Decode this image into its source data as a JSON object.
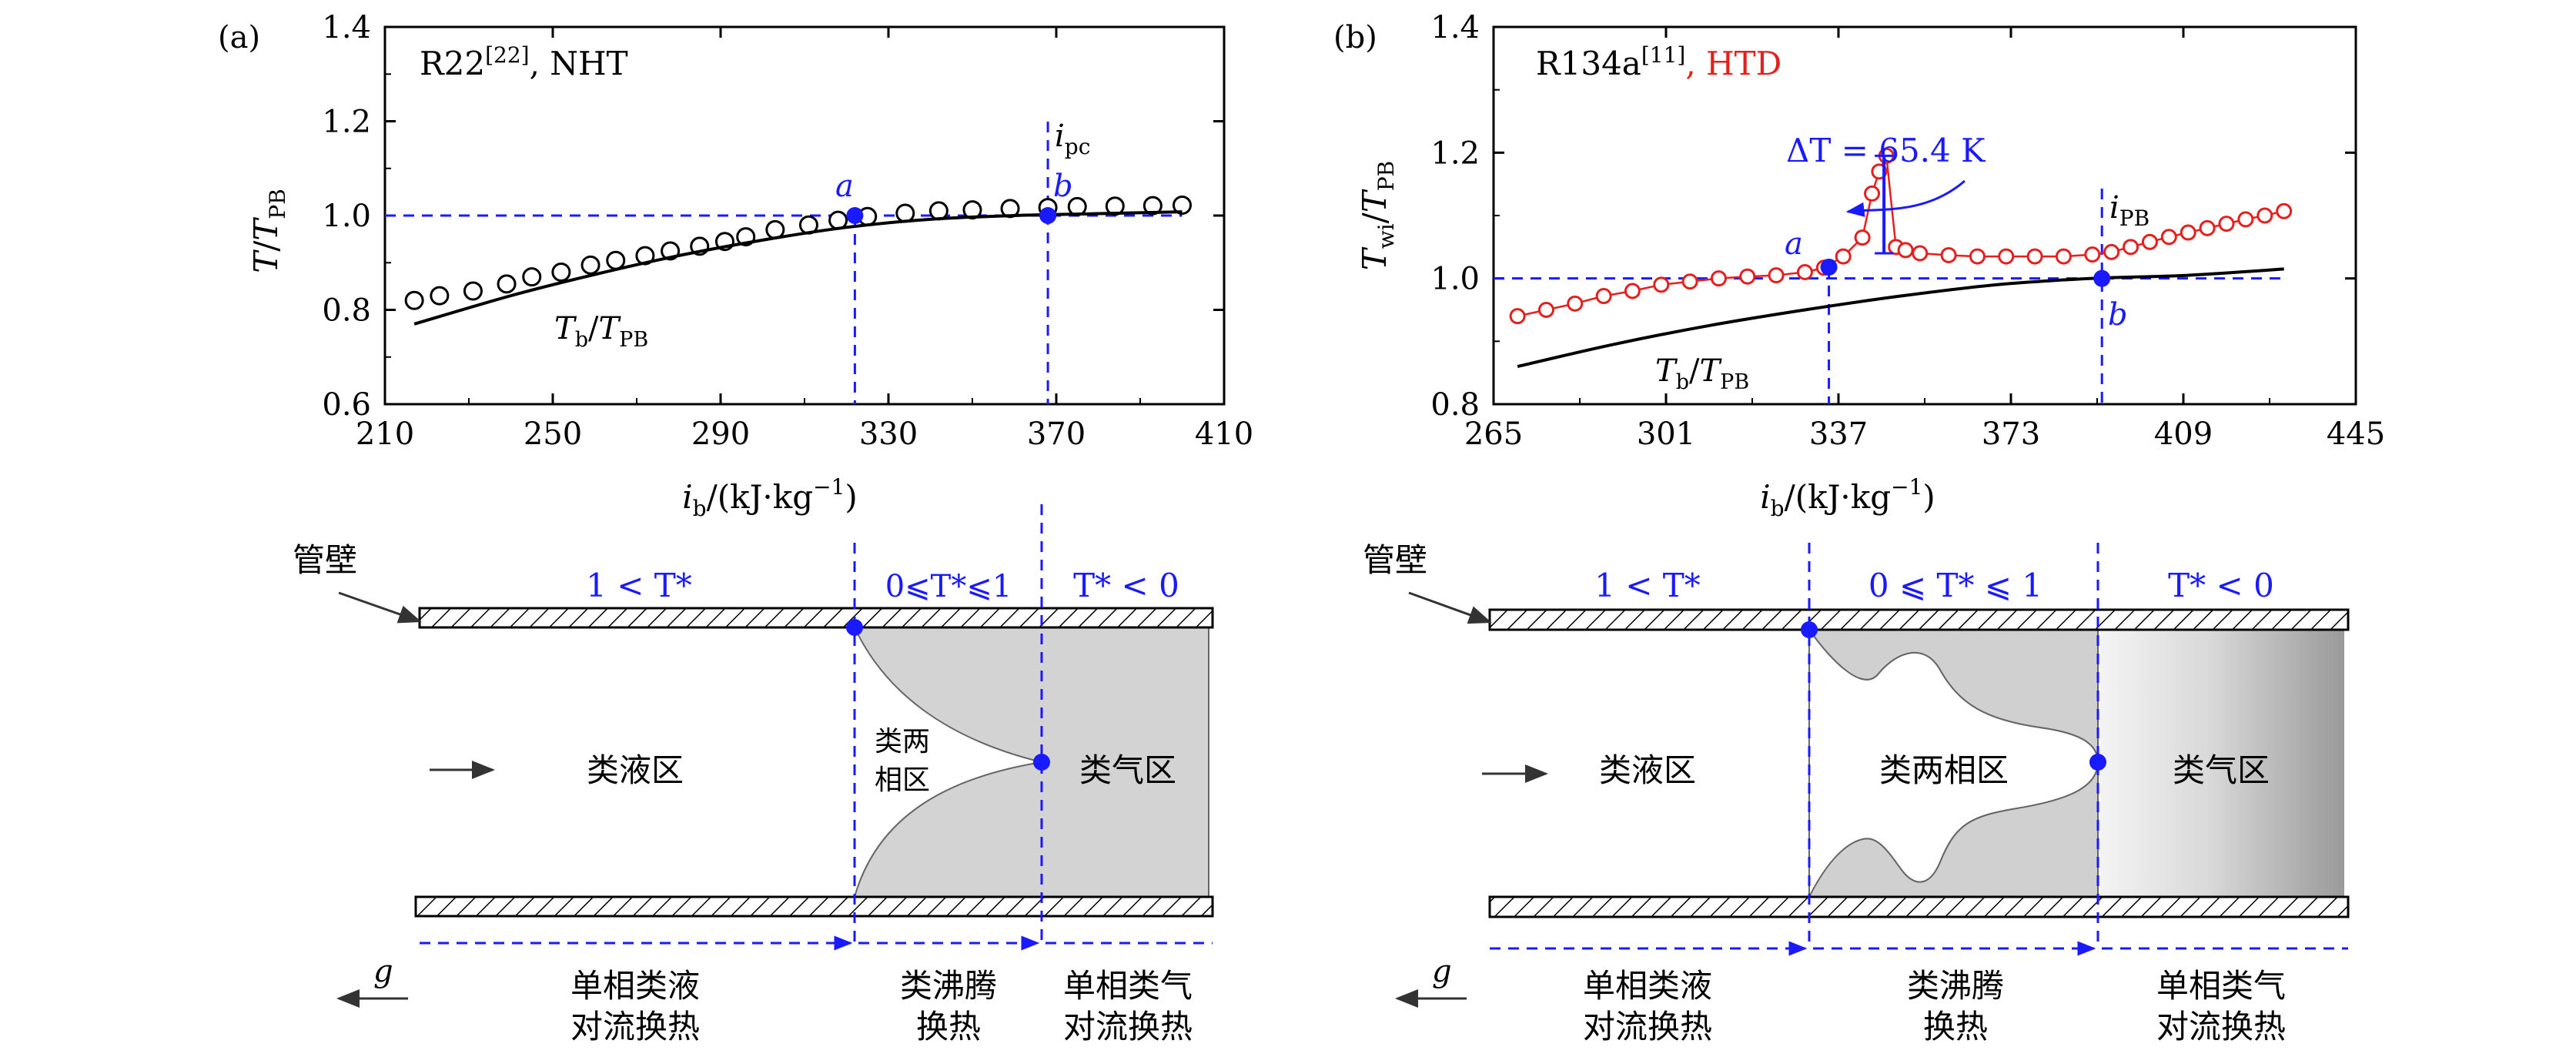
{
  "chart_data": [
    {
      "type": "scatter",
      "panel_label": "(a)",
      "title": "R22",
      "title_ref": "[22]",
      "title_suffix": ", NHT",
      "xlabel": "i_b/(kJ·kg^-1)",
      "ylabel": "T/T_PB",
      "xlim": [
        210,
        410
      ],
      "ylim": [
        0.6,
        1.4
      ],
      "xticks": [
        210,
        250,
        290,
        330,
        370,
        410
      ],
      "yticks": [
        0.6,
        0.8,
        1.0,
        1.2,
        1.4
      ],
      "ref_y": 1.0,
      "ipc_x": 368,
      "series": [
        {
          "name": "wall",
          "marker": "open-circle",
          "x": [
            217,
            223,
            231,
            239,
            245,
            252,
            259,
            265,
            272,
            278,
            285,
            291,
            296,
            303,
            311,
            318,
            325,
            334,
            342,
            350,
            359,
            368,
            375,
            384,
            393,
            400
          ],
          "y": [
            0.82,
            0.83,
            0.84,
            0.855,
            0.87,
            0.88,
            0.895,
            0.905,
            0.915,
            0.925,
            0.935,
            0.945,
            0.955,
            0.97,
            0.98,
            0.99,
            0.998,
            1.005,
            1.01,
            1.012,
            1.015,
            1.017,
            1.019,
            1.02,
            1.021,
            1.022
          ]
        },
        {
          "name": "T_b/T_PB",
          "line": true,
          "x": [
            217,
            240,
            260,
            280,
            300,
            320,
            340,
            360,
            380,
            400
          ],
          "y": [
            0.77,
            0.83,
            0.875,
            0.915,
            0.948,
            0.975,
            0.992,
            1.0,
            1.004,
            1.008
          ]
        }
      ],
      "points": [
        {
          "name": "a",
          "x": 322,
          "y": 1.0
        },
        {
          "name": "b",
          "x": 368,
          "y": 1.0
        }
      ]
    },
    {
      "type": "scatter",
      "panel_label": "(b)",
      "title": "R134a",
      "title_ref": "[11]",
      "title_suffix": ", HTD",
      "xlabel": "i_b/(kJ·kg^-1)",
      "ylabel": "T_wi/T_PB",
      "xlim": [
        265,
        445
      ],
      "ylim": [
        0.8,
        1.4
      ],
      "xticks": [
        265,
        301,
        337,
        373,
        409,
        445
      ],
      "yticks": [
        0.8,
        1.0,
        1.2,
        1.4
      ],
      "ref_y": 1.0,
      "ipb_x": 392,
      "delta_T_label": "ΔT = 65.4 K",
      "series": [
        {
          "name": "wall",
          "marker": "open-circle",
          "line": true,
          "x": [
            270,
            276,
            282,
            288,
            294,
            300,
            306,
            312,
            318,
            324,
            330,
            334,
            338,
            342,
            344,
            345.5,
            347,
            349,
            351,
            354,
            360,
            366,
            372,
            378,
            384,
            390,
            394,
            398,
            402,
            406,
            410,
            414,
            418,
            422,
            426,
            430
          ],
          "y": [
            0.94,
            0.95,
            0.96,
            0.972,
            0.98,
            0.99,
            0.995,
            1.0,
            1.003,
            1.005,
            1.01,
            1.017,
            1.035,
            1.065,
            1.135,
            1.17,
            1.195,
            1.05,
            1.045,
            1.04,
            1.037,
            1.035,
            1.035,
            1.035,
            1.035,
            1.038,
            1.042,
            1.05,
            1.058,
            1.066,
            1.073,
            1.08,
            1.087,
            1.094,
            1.1,
            1.107
          ]
        },
        {
          "name": "T_b/T_PB",
          "line": true,
          "x": [
            270,
            290,
            310,
            330,
            350,
            370,
            390,
            410,
            430
          ],
          "y": [
            0.86,
            0.895,
            0.925,
            0.95,
            0.972,
            0.99,
            1.0,
            1.005,
            1.015
          ]
        }
      ],
      "points": [
        {
          "name": "a",
          "x": 335,
          "y": 1.018
        },
        {
          "name": "b",
          "x": 392,
          "y": 1.0
        }
      ]
    }
  ],
  "labels": {
    "a_panel_tick_prefix": "i",
    "ipc_main": "i",
    "ipc_sub": "pc",
    "ipb_main": "i",
    "ipb_sub": "PB",
    "tb_main": "T",
    "tb_sub": "b",
    "tb_sep": "/",
    "tpb_main": "T",
    "tpb_sub": "PB",
    "point_a": "a",
    "point_b": "b",
    "xlabel_i": "i",
    "xlabel_sub": "b",
    "xlabel_rest": "/(kJ·kg",
    "xlabel_exp": "−1",
    "xlabel_close": ")",
    "ylabel_a_T": "T",
    "ylabel_a_slash": "/",
    "ylabel_b_T": "T",
    "ylabel_b_wi": "wi",
    "delta_T": "ΔT = 65.4 K"
  },
  "diagram": {
    "wall_label": "管壁",
    "gravity_label": "g",
    "a": {
      "region_liquid_T": "1 < T*",
      "region_boil_T": "0⩽T*⩽1",
      "region_gas_T": "T* < 0",
      "zone_liquid": "类液区",
      "zone_two_phase_line1": "类两",
      "zone_two_phase_line2": "相区",
      "zone_gas": "类气区",
      "ht_liquid_1": "单相类液",
      "ht_liquid_2": "对流换热",
      "ht_boil_1": "类沸腾",
      "ht_boil_2": "换热",
      "ht_gas_1": "单相类气",
      "ht_gas_2": "对流换热"
    },
    "b": {
      "region_liquid_T": "1 < T*",
      "region_boil_T": "0 ⩽ T* ⩽ 1",
      "region_gas_T": "T* < 0",
      "zone_liquid": "类液区",
      "zone_two_phase": "类两相区",
      "zone_gas": "类气区",
      "ht_liquid_1": "单相类液",
      "ht_liquid_2": "对流换热",
      "ht_boil_1": "类沸腾",
      "ht_boil_2": "换热",
      "ht_gas_1": "单相类气",
      "ht_gas_2": "对流换热"
    }
  },
  "colors": {
    "blue": "#1a1aff",
    "red": "#e4201e",
    "black": "#000000",
    "gray_fill": "#d3d3d3"
  }
}
